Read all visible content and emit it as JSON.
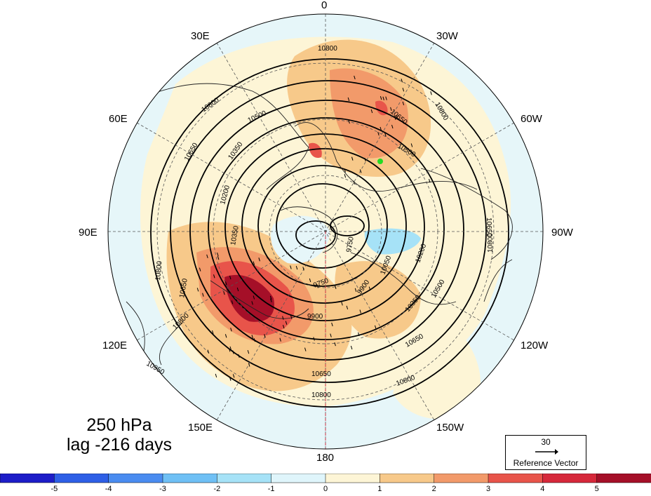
{
  "map": {
    "projection": "north-polar-stereographic",
    "longitude_labels": [
      "0",
      "30W",
      "60W",
      "90W",
      "120W",
      "150W",
      "180",
      "150E",
      "120E",
      "90E",
      "60E",
      "30E"
    ],
    "contour_labels": [
      "10800",
      "10650",
      "10500",
      "10350",
      "10200",
      "10050",
      "9900",
      "9750",
      "10950"
    ],
    "highlight_point_color": "#22dd22",
    "shading": {
      "positive_max_region": "east-siberia / NE Asia",
      "negative_region": "near pole / Canadian sector"
    }
  },
  "title": {
    "line1": "250 hPa",
    "line2": "lag -216 days"
  },
  "reference_vector": {
    "value": "30",
    "label": "Reference Vector"
  },
  "colorbar": {
    "ticks": [
      "-5",
      "-4",
      "-3",
      "-2",
      "-1",
      "0",
      "1",
      "2",
      "3",
      "4",
      "5"
    ],
    "colors": [
      "#1d1dc8",
      "#2e5fe6",
      "#4a8cf0",
      "#6fc0f5",
      "#a6e2f7",
      "#dff5fb",
      "#fdf5d6",
      "#f7c98a",
      "#f29a6a",
      "#e8544a",
      "#d6283a",
      "#a50f28"
    ]
  }
}
